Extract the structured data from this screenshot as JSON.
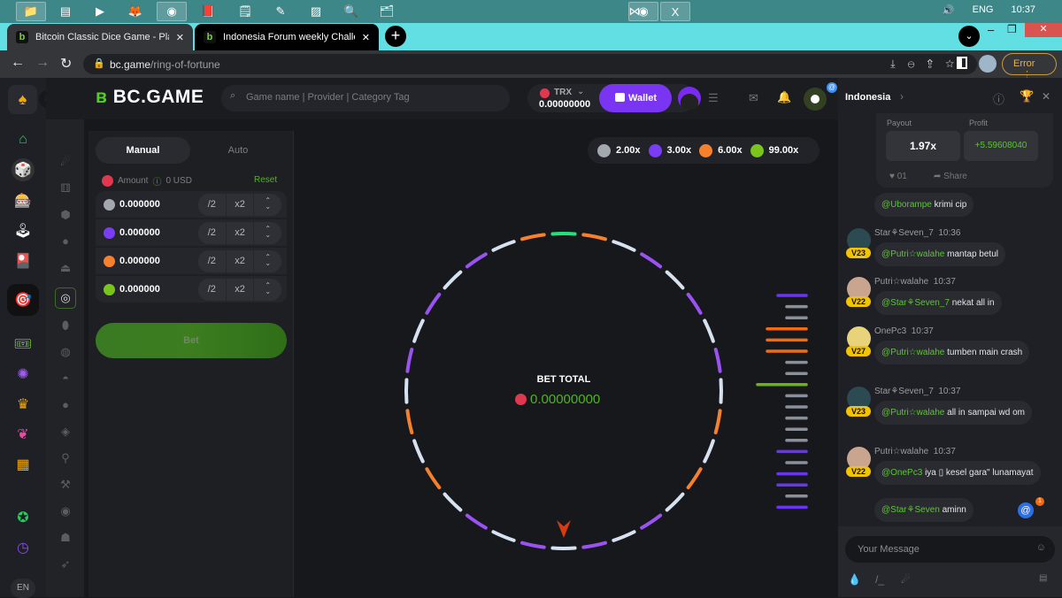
{
  "taskbar": {
    "clock": "10:37",
    "lang": "ENG"
  },
  "browser": {
    "tabs": [
      {
        "title": "Bitcoin Classic Dice Game - Play I"
      },
      {
        "title": "Indonesia Forum weekly Challeng"
      }
    ],
    "url_host": "bc.game",
    "url_path": "/ring-of-fortune",
    "error_label": "Error"
  },
  "header": {
    "logo": "BC.GAME",
    "search_placeholder": "Game name | Provider | Category Tag",
    "currency": "TRX",
    "balance": "0.00000000",
    "wallet_label": "Wallet",
    "notification_badge": "@"
  },
  "controls": {
    "tabs": [
      "Manual",
      "Auto"
    ],
    "amount_label": "Amount",
    "amount_usd": "0 USD",
    "reset_label": "Reset",
    "half_label": "/2",
    "double_label": "x2",
    "rows": [
      {
        "color": "#a3a7ae",
        "value": "0.000000"
      },
      {
        "color": "#7b3cf5",
        "value": "0.000000"
      },
      {
        "color": "#f7802d",
        "value": "0.000000"
      },
      {
        "color": "#7ac51c",
        "value": "0.000000"
      }
    ],
    "bet_label": "Bet"
  },
  "game": {
    "payouts": [
      {
        "color": "#a3a7ae",
        "label": "2.00x"
      },
      {
        "color": "#7b3cf5",
        "label": "3.00x"
      },
      {
        "color": "#f7802d",
        "label": "6.00x"
      },
      {
        "color": "#7ac51c",
        "label": "99.00x"
      }
    ],
    "bet_total_label": "BET TOTAL",
    "bet_total_value": "0.00000000",
    "ring_segments": [
      "green",
      "orange",
      "white",
      "purple",
      "white",
      "purple",
      "white",
      "purple",
      "white",
      "orange",
      "white",
      "orange",
      "white",
      "purple",
      "white",
      "purple",
      "white",
      "purple",
      "white",
      "purple",
      "white",
      "orange",
      "white",
      "orange",
      "white",
      "purple",
      "white",
      "purple",
      "white",
      "purple",
      "white",
      "orange"
    ],
    "history": [
      "purple",
      "gray",
      "gray",
      "orange",
      "orange",
      "orange",
      "gray",
      "gray",
      "green",
      "gray",
      "gray",
      "gray",
      "gray",
      "gray",
      "purple",
      "gray",
      "purple",
      "purple",
      "gray",
      "purple"
    ],
    "colors": {
      "green": "#22e07a",
      "orange": "#f7802d",
      "white": "#d7e2f0",
      "purple": "#9b52f2",
      "gray": "#8a9099",
      "hist_purple": "#6a35f2",
      "hist_orange": "#f26a12",
      "hist_green": "#6cb21a"
    }
  },
  "chat": {
    "room": "Indonesia",
    "payout_label": "Payout",
    "profit_label": "Profit",
    "payout_value": "1.97x",
    "profit_value": "+5.59608040",
    "likes": "01",
    "share_label": "Share",
    "messages": [
      {
        "user": "",
        "time": "",
        "vip": "",
        "mention": "@Uborampe",
        "text": " krimi cip"
      },
      {
        "user": "Star⚘Seven_7",
        "time": "10:36",
        "vip": "V23",
        "mention": "@Putri☆walahe",
        "text": " mantap betul"
      },
      {
        "user": "Putri☆walahe",
        "time": "10:37",
        "vip": "V22",
        "mention": "@Star⚘Seven_7",
        "text": " nekat all in"
      },
      {
        "user": "OnePc3",
        "time": "10:37",
        "vip": "V27",
        "mention": "@Putri☆walahe",
        "text": " tumben main crash"
      },
      {
        "user": "Star⚘Seven_7",
        "time": "10:37",
        "vip": "V23",
        "mention": "@Putri☆walahe",
        "text": " all in sampai wd om"
      },
      {
        "user": "Putri☆walahe",
        "time": "10:37",
        "vip": "V22",
        "mention": "@OnePc3",
        "text": " iya ▯ kesel gara\" lunamayat"
      },
      {
        "user": "",
        "time": "",
        "vip": "",
        "mention": "@Star⚘Seven",
        "text": " aminn"
      }
    ],
    "mention_badge": "1",
    "input_placeholder": "Your Message"
  },
  "sidebar": {
    "lang": "EN"
  }
}
